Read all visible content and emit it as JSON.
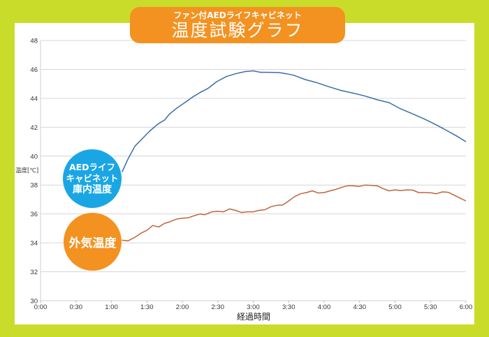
{
  "title": {
    "sub": "ファン付AEDライフキャビネット",
    "main": "温度試験グラフ"
  },
  "chart_data": {
    "type": "line",
    "xlabel": "経過時間",
    "ylabel": "温度[℃]",
    "xlim_minutes": [
      0,
      360
    ],
    "ylim": [
      30,
      48
    ],
    "yticks": [
      30,
      32,
      34,
      36,
      38,
      40,
      42,
      44,
      46,
      48
    ],
    "xticks": [
      {
        "m": 0,
        "label": "0:00"
      },
      {
        "m": 30,
        "label": "0:30"
      },
      {
        "m": 60,
        "label": "1:00"
      },
      {
        "m": 90,
        "label": "1:30"
      },
      {
        "m": 120,
        "label": "2:00"
      },
      {
        "m": 150,
        "label": "2:30"
      },
      {
        "m": 180,
        "label": "3:00"
      },
      {
        "m": 210,
        "label": "3:30"
      },
      {
        "m": 240,
        "label": "4:00"
      },
      {
        "m": 270,
        "label": "4:30"
      },
      {
        "m": 300,
        "label": "5:00"
      },
      {
        "m": 330,
        "label": "5:30"
      },
      {
        "m": 360,
        "label": "6:00"
      }
    ],
    "grid": true,
    "series": [
      {
        "name": "AEDライフキャビネット庫内温度",
        "label_lines": [
          "AEDライフ",
          "キャビネット",
          "庫内温度"
        ],
        "color": "#3a6ea5",
        "x": [
          69,
          74,
          80,
          86,
          92,
          99,
          105,
          109,
          115,
          122,
          129,
          135,
          142,
          149,
          157,
          165,
          173,
          180,
          186,
          192,
          202,
          208,
          214,
          224,
          233,
          244,
          254,
          265,
          275,
          285,
          295,
          304,
          314,
          324,
          334,
          342,
          352,
          360
        ],
        "y": [
          38.9,
          39.8,
          40.7,
          41.2,
          41.7,
          42.2,
          42.5,
          42.9,
          43.3,
          43.7,
          44.1,
          44.4,
          44.7,
          45.15,
          45.5,
          45.7,
          45.85,
          45.9,
          45.8,
          45.8,
          45.78,
          45.7,
          45.6,
          45.3,
          45.1,
          44.8,
          44.55,
          44.35,
          44.15,
          43.9,
          43.7,
          43.3,
          42.95,
          42.6,
          42.2,
          41.85,
          41.4,
          41.0
        ]
      },
      {
        "name": "外気温度",
        "color": "#c0643a",
        "bubble_color": "#f39221",
        "x": [
          69,
          74,
          80,
          85,
          90,
          95,
          100,
          105,
          109,
          115,
          119,
          125,
          130,
          135,
          139,
          145,
          150,
          155,
          160,
          165,
          170,
          175,
          180,
          185,
          190,
          195,
          200,
          205,
          210,
          215,
          220,
          225,
          230,
          235,
          240,
          245,
          250,
          255,
          260,
          265,
          269,
          275,
          280,
          285,
          290,
          295,
          300,
          305,
          310,
          315,
          320,
          325,
          330,
          335,
          340,
          345,
          350,
          355,
          360
        ],
        "y": [
          34.19,
          34.14,
          34.39,
          34.67,
          34.87,
          35.2,
          35.1,
          35.35,
          35.45,
          35.64,
          35.7,
          35.74,
          35.88,
          36.0,
          35.95,
          36.15,
          36.18,
          36.15,
          36.35,
          36.25,
          36.1,
          36.15,
          36.15,
          36.25,
          36.3,
          36.5,
          36.6,
          36.62,
          36.9,
          37.2,
          37.4,
          37.48,
          37.6,
          37.45,
          37.48,
          37.6,
          37.7,
          37.85,
          37.95,
          37.95,
          37.9,
          38.0,
          37.97,
          37.95,
          37.75,
          37.6,
          37.67,
          37.62,
          37.67,
          37.65,
          37.48,
          37.48,
          37.47,
          37.4,
          37.53,
          37.5,
          37.3,
          37.1,
          36.9
        ]
      }
    ]
  }
}
